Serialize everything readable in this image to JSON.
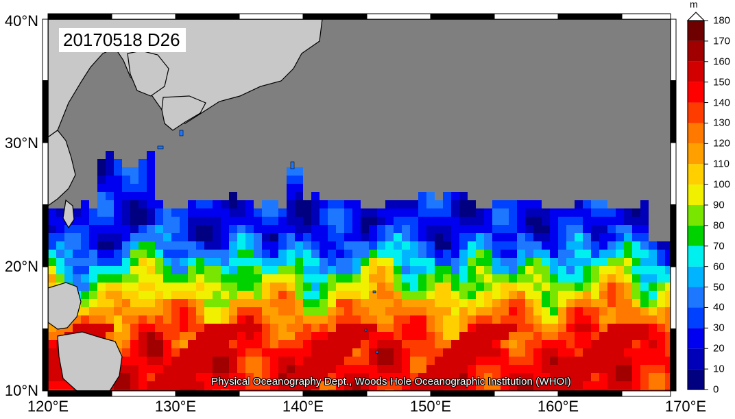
{
  "map": {
    "title": "20170518 D26",
    "credit": "Physical Oceanography Dept., Woods Hole Oceanographic Institution (WHOI)",
    "lat_labels": [
      "10°N",
      "20°N",
      "30°N",
      "40°N"
    ],
    "lon_labels": [
      "120°E",
      "130°E",
      "140°E",
      "150°E",
      "160°E",
      "170°E"
    ],
    "colors": {
      "land": "#c8c8c8",
      "no_data": "#7f7f7f",
      "coast": "#000000"
    }
  },
  "colorbar": {
    "unit": "m",
    "tick_labels": [
      "0",
      "10",
      "20",
      "30",
      "40",
      "50",
      "60",
      "70",
      "80",
      "90",
      "100",
      "110",
      "120",
      "130",
      "140",
      "150",
      "160",
      "170",
      "180"
    ],
    "colors": [
      "#000080",
      "#0000b8",
      "#0000f0",
      "#0040ff",
      "#1e78ff",
      "#00b4ff",
      "#00f0f0",
      "#00d200",
      "#78e600",
      "#f0f000",
      "#ffcf00",
      "#ffa000",
      "#ff7800",
      "#ff3c00",
      "#ff0000",
      "#d20000",
      "#a00000",
      "#6e0000"
    ]
  }
}
